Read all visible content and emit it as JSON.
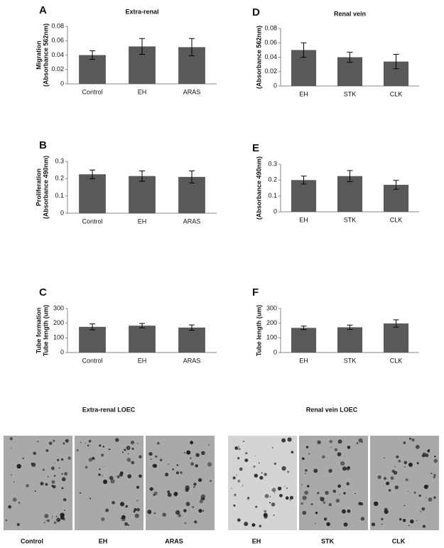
{
  "chart_data": [
    {
      "type": "bar",
      "panel": "A",
      "title": "Extra-renal",
      "row_label": "Migration",
      "ylabel": "(Absorbance 562nm)",
      "categories": [
        "Control",
        "EH",
        "ARAS"
      ],
      "values": [
        0.04,
        0.052,
        0.051
      ],
      "errors": [
        0.006,
        0.011,
        0.012
      ],
      "color": "#595959",
      "ylim": [
        0,
        0.08
      ],
      "yticks": [
        0,
        0.02,
        0.04,
        0.06,
        0.08
      ]
    },
    {
      "type": "bar",
      "panel": "B",
      "row_label": "Proliferation",
      "ylabel": "(Absorbance 490nm)",
      "categories": [
        "Control",
        "EH",
        "ARAS"
      ],
      "values": [
        0.225,
        0.215,
        0.21
      ],
      "errors": [
        0.025,
        0.03,
        0.035
      ],
      "color": "#595959",
      "ylim": [
        0,
        0.3
      ],
      "yticks": [
        0,
        0.1,
        0.2,
        0.3
      ]
    },
    {
      "type": "bar",
      "panel": "C",
      "row_label": "Tube formation",
      "ylabel": "Tube length (um)",
      "categories": [
        "Control",
        "EH",
        "ARAS"
      ],
      "values": [
        175,
        183,
        170
      ],
      "errors": [
        20,
        15,
        18
      ],
      "color": "#595959",
      "ylim": [
        0,
        300
      ],
      "yticks": [
        0,
        100,
        200,
        300
      ]
    },
    {
      "type": "bar",
      "panel": "D",
      "title": "Renal vein",
      "ylabel": "(Absorbance 562nm)",
      "categories": [
        "EH",
        "STK",
        "CLK"
      ],
      "values": [
        0.05,
        0.04,
        0.034
      ],
      "errors": [
        0.01,
        0.007,
        0.01
      ],
      "color": "#595959",
      "ylim": [
        0,
        0.08
      ],
      "yticks": [
        0,
        0.02,
        0.04,
        0.06,
        0.08
      ]
    },
    {
      "type": "bar",
      "panel": "E",
      "ylabel": "(Absorbance 490nm)",
      "categories": [
        "EH",
        "STK",
        "CLK"
      ],
      "values": [
        0.2,
        0.225,
        0.17
      ],
      "errors": [
        0.025,
        0.035,
        0.028
      ],
      "color": "#595959",
      "ylim": [
        0,
        0.3
      ],
      "yticks": [
        0,
        0.1,
        0.2,
        0.3
      ]
    },
    {
      "type": "bar",
      "panel": "F",
      "ylabel": "Tube length (um)",
      "categories": [
        "EH",
        "STK",
        "CLK"
      ],
      "values": [
        168,
        172,
        198
      ],
      "errors": [
        12,
        15,
        25
      ],
      "color": "#595959",
      "ylim": [
        0,
        300
      ],
      "yticks": [
        0,
        100,
        200,
        300
      ]
    }
  ],
  "micrographs": [
    {
      "title": "Extra-renal LOEC",
      "labels": [
        "Control",
        "EH",
        "ARAS"
      ]
    },
    {
      "title": "Renal vein LOEC",
      "labels": [
        "EH",
        "STK",
        "CLK"
      ]
    }
  ]
}
